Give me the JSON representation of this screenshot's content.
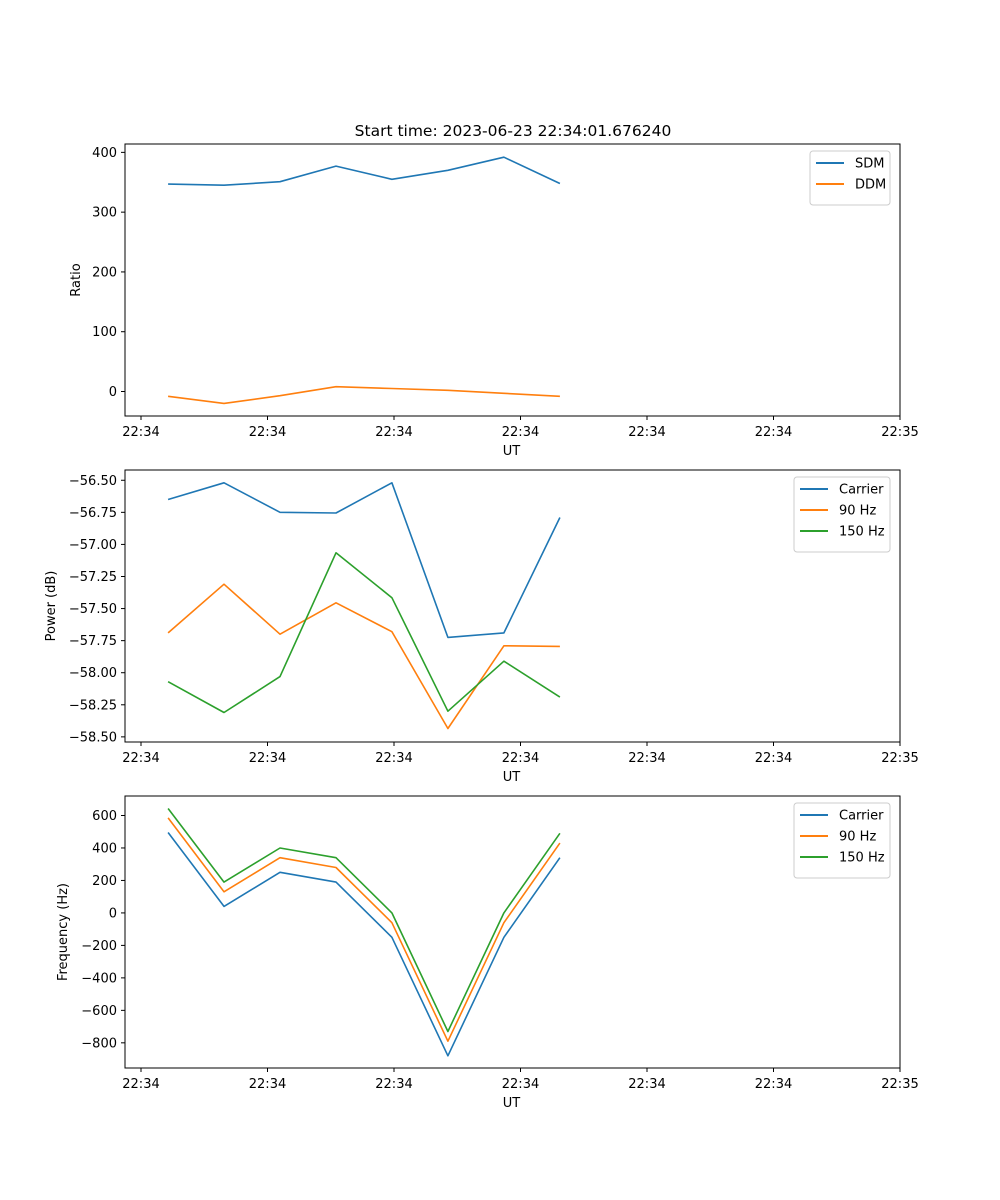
{
  "figure": {
    "title": "Start time: 2023-06-23 22:34:01.676240"
  },
  "chart_data": [
    {
      "type": "line",
      "title": "Start time: 2023-06-23 22:34:01.676240",
      "xlabel": "UT",
      "ylabel": "Ratio",
      "x_tick_labels": [
        "22:34",
        "22:34",
        "22:34",
        "22:34",
        "22:34",
        "22:34",
        "22:34"
      ],
      "x_last_tick_label": "22:35",
      "xlim": [
        0,
        9
      ],
      "x": [
        0.5,
        1.15,
        1.8,
        2.45,
        3.1,
        3.75,
        4.4,
        5.05
      ],
      "ylim": [
        -41,
        414
      ],
      "yticks": [
        0,
        100,
        200,
        300,
        400
      ],
      "legend": "top-right",
      "series": [
        {
          "name": "SDM",
          "color": "#1f77b4",
          "values": [
            347,
            345,
            351,
            377,
            355,
            370,
            392,
            348
          ]
        },
        {
          "name": "DDM",
          "color": "#ff7f0e",
          "values": [
            -8,
            -20,
            -7,
            8,
            5,
            2,
            -3,
            -8
          ]
        }
      ]
    },
    {
      "type": "line",
      "xlabel": "UT",
      "ylabel": "Power (dB)",
      "x_tick_labels": [
        "22:34",
        "22:34",
        "22:34",
        "22:34",
        "22:34",
        "22:34",
        "22:34"
      ],
      "x_last_tick_label": "22:35",
      "xlim": [
        0,
        9
      ],
      "x": [
        0.5,
        1.15,
        1.8,
        2.45,
        3.1,
        3.75,
        4.4,
        5.05
      ],
      "ylim": [
        -58.54,
        -56.42
      ],
      "yticks": [
        -58.5,
        -58.25,
        -58.0,
        -57.75,
        -57.5,
        -57.25,
        -57.0,
        -56.75,
        -56.5
      ],
      "ytick_labels": [
        "−58.50",
        "−58.25",
        "−58.00",
        "−57.75",
        "−57.50",
        "−57.25",
        "−57.00",
        "−56.75",
        "−56.50"
      ],
      "legend": "top-right",
      "series": [
        {
          "name": "Carrier",
          "color": "#1f77b4",
          "values": [
            -56.65,
            -56.52,
            -56.75,
            -56.755,
            -56.52,
            -57.725,
            -57.69,
            -56.79
          ]
        },
        {
          "name": "90 Hz",
          "color": "#ff7f0e",
          "values": [
            -57.69,
            -57.31,
            -57.7,
            -57.455,
            -57.68,
            -58.435,
            -57.79,
            -57.795
          ]
        },
        {
          "name": "150 Hz",
          "color": "#2ca02c",
          "values": [
            -58.07,
            -58.31,
            -58.03,
            -57.065,
            -57.415,
            -58.3,
            -57.91,
            -58.19
          ]
        }
      ]
    },
    {
      "type": "line",
      "xlabel": "UT",
      "ylabel": "Frequency (Hz)",
      "x_tick_labels": [
        "22:34",
        "22:34",
        "22:34",
        "22:34",
        "22:34",
        "22:34",
        "22:34"
      ],
      "x_last_tick_label": "22:35",
      "xlim": [
        0,
        9
      ],
      "x": [
        0.5,
        1.15,
        1.8,
        2.45,
        3.1,
        3.75,
        4.4,
        5.05
      ],
      "ylim": [
        -955,
        720
      ],
      "yticks": [
        -800,
        -600,
        -400,
        -200,
        0,
        200,
        400,
        600
      ],
      "ytick_labels": [
        "−800",
        "−600",
        "−400",
        "−200",
        "0",
        "200",
        "400",
        "600"
      ],
      "legend": "top-right",
      "series": [
        {
          "name": "Carrier",
          "color": "#1f77b4",
          "values": [
            495,
            40,
            250,
            190,
            -150,
            -880,
            -150,
            340
          ]
        },
        {
          "name": "90 Hz",
          "color": "#ff7f0e",
          "values": [
            585,
            130,
            340,
            280,
            -60,
            -790,
            -60,
            430
          ]
        },
        {
          "name": "150 Hz",
          "color": "#2ca02c",
          "values": [
            643,
            190,
            400,
            340,
            0,
            -730,
            0,
            490
          ]
        }
      ]
    }
  ]
}
